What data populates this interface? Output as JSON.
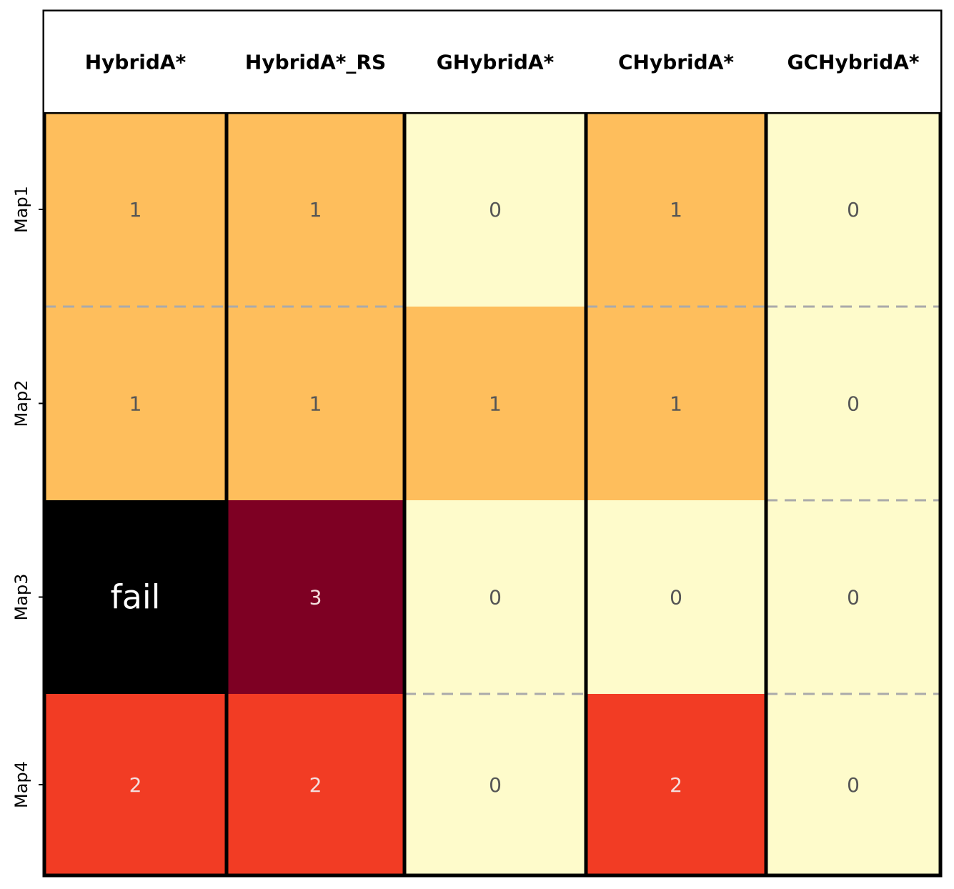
{
  "chart_data": {
    "type": "heatmap",
    "columns": [
      "HybridA*",
      "HybridA*_RS",
      "GHybridA*",
      "CHybridA*",
      "GCHybridA*"
    ],
    "rows": [
      "Map1",
      "Map2",
      "Map3",
      "Map4"
    ],
    "values": [
      [
        1,
        1,
        0,
        1,
        0
      ],
      [
        1,
        1,
        1,
        1,
        0
      ],
      [
        null,
        3,
        0,
        0,
        0
      ],
      [
        2,
        2,
        0,
        2,
        0
      ]
    ],
    "labels": [
      [
        "1",
        "1",
        "0",
        "1",
        "0"
      ],
      [
        "1",
        "1",
        "1",
        "1",
        "0"
      ],
      [
        "fail",
        "3",
        "0",
        "0",
        "0"
      ],
      [
        "2",
        "2",
        "0",
        "2",
        "0"
      ]
    ],
    "colors": {
      "0": "#fefbcb",
      "1": "#febe5c",
      "2": "#f23c24",
      "3": "#7e0023",
      "fail": "#000000"
    },
    "text_colors": {
      "dark": "#555555",
      "light": "#f4dede",
      "fail": "#ffffff"
    },
    "row_separator": "dashed",
    "separator_color": "#aaaaaa"
  }
}
